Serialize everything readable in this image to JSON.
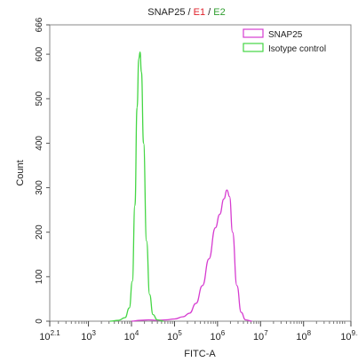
{
  "chart_data": {
    "type": "line",
    "title_parts": [
      {
        "text": "SNAP25",
        "color": "#222222"
      },
      {
        "text": " / ",
        "color": "#222222"
      },
      {
        "text": "E1",
        "color": "#e0202a"
      },
      {
        "text": " / ",
        "color": "#222222"
      },
      {
        "text": "E2",
        "color": "#2e9e2e"
      }
    ],
    "xlabel": "FITC-A",
    "ylabel": "Count",
    "x_scale": "log",
    "xlim_log10": [
      2.1,
      9.1
    ],
    "ylim": [
      0,
      666
    ],
    "x_ticks": [
      {
        "base": "10",
        "exp": "2.1",
        "log": 2.1
      },
      {
        "base": "10",
        "exp": "3",
        "log": 3
      },
      {
        "base": "10",
        "exp": "4",
        "log": 4
      },
      {
        "base": "10",
        "exp": "5",
        "log": 5
      },
      {
        "base": "10",
        "exp": "6",
        "log": 6
      },
      {
        "base": "10",
        "exp": "7",
        "log": 7
      },
      {
        "base": "10",
        "exp": "8",
        "log": 8
      },
      {
        "base": "10",
        "exp": "9.1",
        "log": 9.1
      }
    ],
    "y_ticks": [
      {
        "label": "0",
        "value": 0
      },
      {
        "label": "100",
        "value": 100
      },
      {
        "label": "200",
        "value": 200
      },
      {
        "label": "300",
        "value": 300
      },
      {
        "label": "400",
        "value": 400
      },
      {
        "label": "500",
        "value": 500
      },
      {
        "label": "600",
        "value": 600
      },
      {
        "label": "666",
        "value": 666
      }
    ],
    "legend_position": "top-right",
    "grid": false,
    "series": [
      {
        "name": "SNAP25",
        "color": "#d63cd0",
        "points_log10_count": [
          [
            4.0,
            0
          ],
          [
            4.2,
            2
          ],
          [
            4.4,
            3
          ],
          [
            4.6,
            2
          ],
          [
            4.8,
            3
          ],
          [
            5.0,
            5
          ],
          [
            5.2,
            10
          ],
          [
            5.35,
            18
          ],
          [
            5.5,
            40
          ],
          [
            5.65,
            80
          ],
          [
            5.8,
            140
          ],
          [
            5.95,
            210
          ],
          [
            6.05,
            240
          ],
          [
            6.15,
            275
          ],
          [
            6.22,
            295
          ],
          [
            6.28,
            280
          ],
          [
            6.35,
            200
          ],
          [
            6.45,
            80
          ],
          [
            6.55,
            20
          ],
          [
            6.65,
            3
          ],
          [
            6.8,
            0
          ]
        ]
      },
      {
        "name": "Isotype control",
        "color": "#44d644",
        "points_log10_count": [
          [
            3.5,
            0
          ],
          [
            3.7,
            2
          ],
          [
            3.85,
            8
          ],
          [
            3.95,
            30
          ],
          [
            4.02,
            90
          ],
          [
            4.08,
            260
          ],
          [
            4.13,
            480
          ],
          [
            4.17,
            590
          ],
          [
            4.2,
            605
          ],
          [
            4.23,
            560
          ],
          [
            4.28,
            400
          ],
          [
            4.35,
            180
          ],
          [
            4.42,
            60
          ],
          [
            4.5,
            15
          ],
          [
            4.6,
            3
          ],
          [
            4.75,
            0
          ]
        ]
      }
    ]
  }
}
